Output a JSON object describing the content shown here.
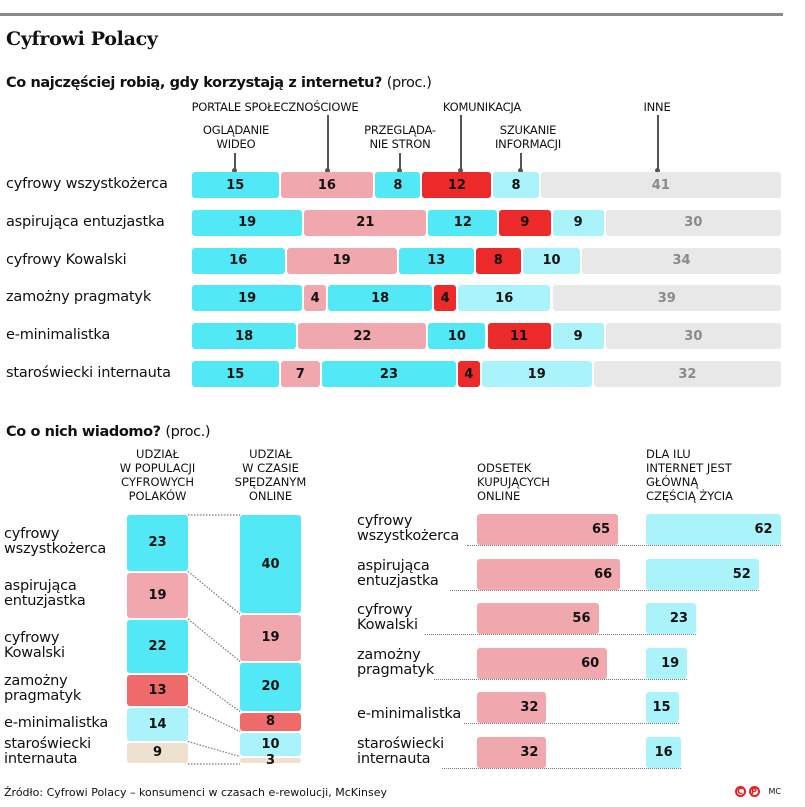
{
  "title": "Cyfrowi Polacy",
  "colors": {
    "video": "#52e8f6",
    "social": "#f0a8ae",
    "browsing": "#52e8f6",
    "communication": "#ec2a2a",
    "search": "#aaf3fa",
    "other": "#e8e8e8",
    "other_text": "#8a8a8a",
    "segment_red_light": "#ef6b6b",
    "segment_beige": "#efe1cf"
  },
  "section1": {
    "question": "Co najczęściej robią, gdy korzystają z internetu?",
    "unit": "(proc.)"
  },
  "section2": {
    "question": "Co o nich wiadomo?",
    "unit": "(proc.)"
  },
  "source": "Źródło: Cyfrowi Polacy – konsumenci w czasach e-rewolucji, McKinsey",
  "logo": {
    "c_glyph": "C",
    "p_glyph": "P",
    "initials": "MC"
  },
  "chart_data": [
    {
      "type": "bar",
      "orientation": "horizontal",
      "stacked": true,
      "title": "Co najczęściej robią, gdy korzystają z internetu? (proc.)",
      "categories": [
        "cyfrowy wszystkożerca",
        "aspirująca entuzjastka",
        "cyfrowy Kowalski",
        "zamożny pragmatyk",
        "e-minimalistka",
        "staroświecki internauta"
      ],
      "series": [
        {
          "name": "OGLĄDANIE WIDEO",
          "key": "video",
          "values": [
            15,
            19,
            16,
            19,
            18,
            15
          ]
        },
        {
          "name": "PORTALE SPOŁECZNOŚCIOWE",
          "key": "social",
          "values": [
            16,
            21,
            19,
            4,
            22,
            7
          ]
        },
        {
          "name": "PRZEGLĄDANIE STRON",
          "key": "browsing",
          "values": [
            8,
            12,
            13,
            18,
            10,
            23
          ]
        },
        {
          "name": "KOMUNIKACJA",
          "key": "communication",
          "values": [
            12,
            9,
            8,
            4,
            11,
            4
          ]
        },
        {
          "name": "SZUKANIE INFORMACJI",
          "key": "search",
          "values": [
            8,
            9,
            10,
            16,
            9,
            19
          ]
        },
        {
          "name": "INNE",
          "key": "other",
          "values": [
            41,
            30,
            34,
            39,
            30,
            32
          ]
        }
      ],
      "category_labels": {
        "portale": "PORTALE SPOŁECZNOŚCIOWE",
        "komunikacja": "KOMUNIKACJA",
        "inne": "INNE",
        "ogladanie_1": "OGLĄDANIE",
        "ogladanie_2": "WIDEO",
        "przegladanie_1": "PRZEGLĄDA-",
        "przegladanie_2": "NIE STRON",
        "szukanie_1": "SZUKANIE",
        "szukanie_2": "INFORMACJI"
      },
      "xlim": [
        0,
        100
      ],
      "legend": "top (labels with leader lines)"
    },
    {
      "type": "bar",
      "orientation": "vertical",
      "stacked": true,
      "title": "Co o nich wiadomo? (proc.)",
      "columns": [
        {
          "header": [
            "UDZIAŁ",
            "W POPULACJI",
            "CYFROWYCH",
            "POLAKÓW"
          ],
          "values": [
            23,
            19,
            22,
            13,
            14,
            9
          ]
        },
        {
          "header": [
            "UDZIAŁ",
            "W CZASIE",
            "SPĘDZANYM",
            "ONLINE"
          ],
          "values": [
            40,
            19,
            20,
            8,
            10,
            3
          ]
        }
      ],
      "categories": [
        [
          "cyfrowy",
          "wszystkożerca"
        ],
        [
          "aspirująca",
          "entuzjastka"
        ],
        [
          "cyfrowy",
          "Kowalski"
        ],
        [
          "zamożny",
          "pragmatyk"
        ],
        [
          "e-minimalistka"
        ],
        [
          "staroświecki",
          "internauta"
        ]
      ],
      "segment_colors": [
        "video",
        "social",
        "video",
        "segment_red_light",
        "search",
        "segment_beige"
      ],
      "ylim": [
        0,
        100
      ]
    },
    {
      "type": "bar",
      "orientation": "horizontal",
      "categories": [
        [
          "cyfrowy",
          "wszystkożerca"
        ],
        [
          "aspirująca",
          "entuzjastka"
        ],
        [
          "cyfrowy",
          "Kowalski"
        ],
        [
          "zamożny",
          "pragmatyk"
        ],
        [
          "e-minimalistka"
        ],
        [
          "staroświecki",
          "internauta"
        ]
      ],
      "series": [
        {
          "name": "ODSETEK KUPUJĄCYCH ONLINE",
          "header": [
            "ODSETEK",
            "KUPUJĄCYCH",
            "ONLINE"
          ],
          "values": [
            65,
            66,
            56,
            60,
            32,
            32
          ],
          "color": "social"
        },
        {
          "name": "DLA ILU INTERNET JEST GŁÓWNĄ CZĘŚCIĄ ŻYCIA",
          "header": [
            "DLA ILU",
            "INTERNET JEST",
            "GŁÓWNĄ",
            "CZĘŚCIĄ ŻYCIA"
          ],
          "values": [
            62,
            52,
            23,
            19,
            15,
            16
          ],
          "color": "search"
        }
      ],
      "xlim": [
        0,
        100
      ]
    }
  ]
}
